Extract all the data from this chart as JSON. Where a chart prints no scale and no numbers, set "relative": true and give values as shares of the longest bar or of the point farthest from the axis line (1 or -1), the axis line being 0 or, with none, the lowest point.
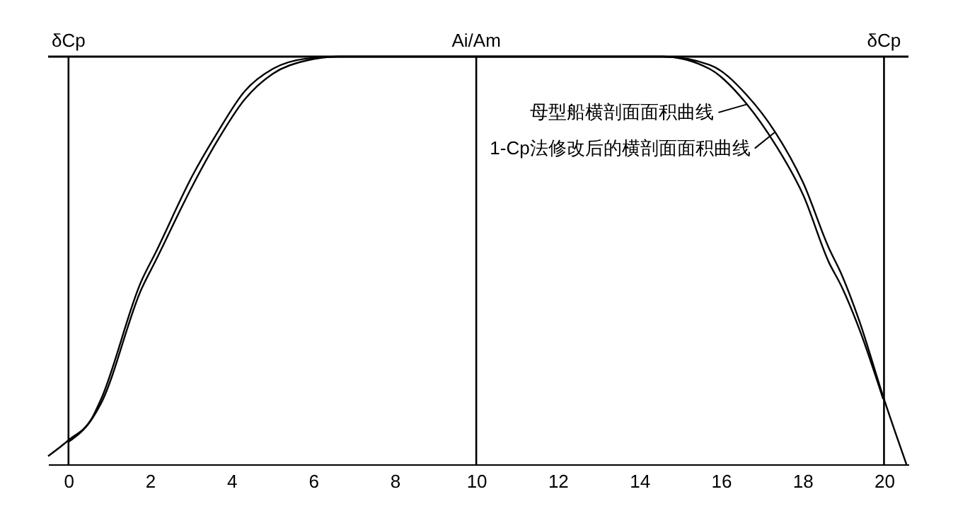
{
  "chart_data": {
    "type": "line",
    "relative": true,
    "x": [
      -0.5,
      0,
      0.58,
      0.8,
      1.79,
      2.14,
      3.05,
      3.63,
      4.32,
      5.01,
      5.82,
      6.62,
      10,
      14.57,
      15.72,
      16.64,
      17.33,
      18.02,
      18.65,
      18.94,
      19.4,
      19.98,
      20.55
    ],
    "xlim": [
      -0.5,
      20.6
    ],
    "xticks": [
      0,
      2,
      4,
      6,
      8,
      10,
      12,
      14,
      16,
      18,
      20
    ],
    "series": [
      {
        "name": "母型船横剖面面积曲线",
        "color": "#000000",
        "values": [
          null,
          0.055,
          0.112,
          0.15,
          0.43,
          0.5,
          0.685,
          0.79,
          0.895,
          0.958,
          0.99,
          1,
          1,
          1,
          0.97,
          0.883,
          0.785,
          0.66,
          0.495,
          0.44,
          0.33,
          0.16,
          null
        ]
      },
      {
        "name": "1-Cp法修改后的横剖面面积曲线",
        "color": "#000000",
        "values": [
          0.02,
          0.059,
          0.114,
          0.16,
          0.45,
          0.52,
          0.71,
          0.81,
          0.915,
          0.97,
          0.995,
          1,
          1,
          1,
          0.98,
          0.905,
          0.815,
          0.69,
          0.53,
          0.47,
          0.35,
          0.166,
          0
        ]
      }
    ],
    "ref_lines": [
      {
        "axis": "x",
        "value": 10,
        "label": "Ai/Am"
      },
      {
        "axis": "x",
        "value": 0
      },
      {
        "axis": "x",
        "value": 20
      },
      {
        "axis": "y",
        "value": 1
      }
    ],
    "annotations": [
      {
        "text": "δCp",
        "x": 0,
        "y": 1
      },
      {
        "text": "δCp",
        "x": 20,
        "y": 1
      }
    ],
    "grid": false,
    "legend": "top right",
    "marker": "none",
    "line_style": "solid"
  }
}
